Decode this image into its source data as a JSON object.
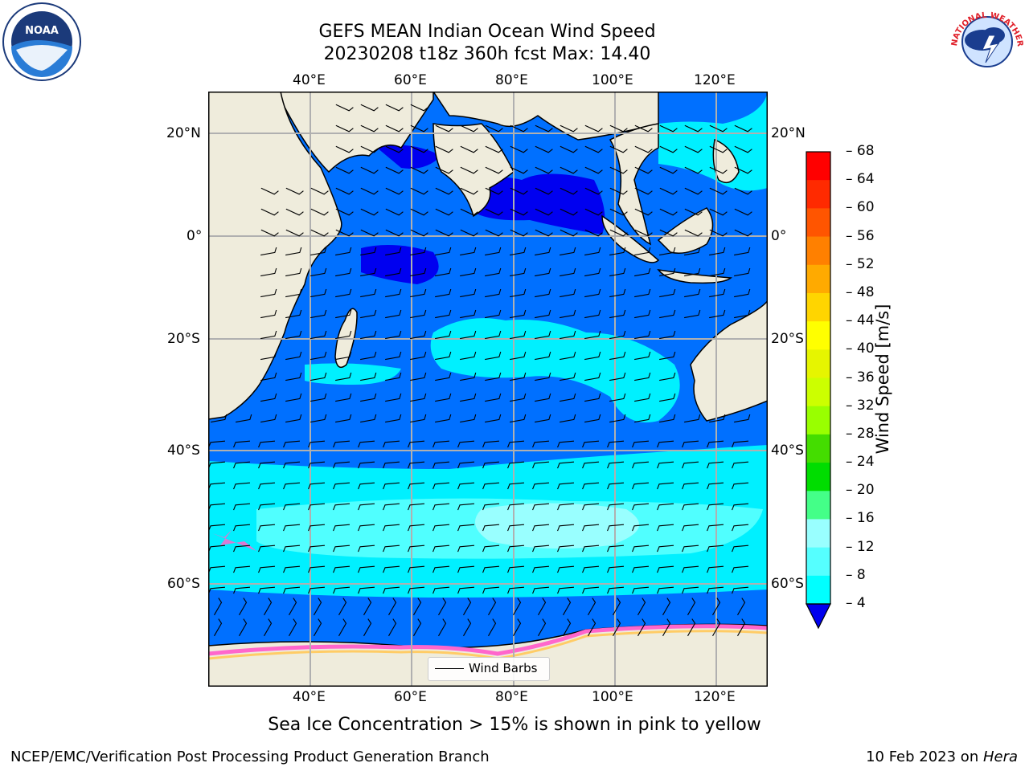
{
  "title": {
    "line1": "GEFS MEAN Indian Ocean Wind Speed",
    "line2": "20230208 t18z 360h fcst   Max: 14.40"
  },
  "logos": {
    "left": {
      "text": "NOAA",
      "icon": "noaa-logo"
    },
    "right": {
      "text": "NATIONAL WEATHER SERVICE",
      "icon": "nws-logo"
    }
  },
  "map": {
    "lon_labels_top": [
      "40°E",
      "60°E",
      "80°E",
      "100°E",
      "120°E"
    ],
    "lon_labels_bottom": [
      "40°E",
      "60°E",
      "80°E",
      "100°E",
      "120°E"
    ],
    "lat_labels_left": [
      "20°N",
      "0°",
      "20°S",
      "40°S",
      "60°S"
    ],
    "lat_labels_right": [
      "20°N",
      "0°",
      "20°S",
      "40°S",
      "60°S"
    ],
    "legend": {
      "label": "Wind Barbs"
    },
    "colors": {
      "land": "#efecdc",
      "ocean_low": "#0000f0",
      "ocean_mid": "#0070ff",
      "ocean_cyan": "#00f0ff",
      "ocean_lightcyan": "#50ffff",
      "sea_ice": "#ff66cc"
    }
  },
  "colorbar": {
    "label": "Wind Speed [m/s]",
    "ticks": [
      "68",
      "64",
      "60",
      "56",
      "52",
      "48",
      "44",
      "40",
      "36",
      "32",
      "28",
      "24",
      "20",
      "16",
      "12",
      "8",
      "4"
    ],
    "colors": [
      "#ff0000",
      "#ff2a00",
      "#ff5500",
      "#ff8000",
      "#ffaa00",
      "#ffd500",
      "#ffff00",
      "#e6f500",
      "#ccff00",
      "#99ff00",
      "#44dd00",
      "#00dd00",
      "#44ff88",
      "#99ffff",
      "#55ffff",
      "#00ffff",
      "#0077ff"
    ],
    "arrow_color": "#0000ee"
  },
  "caption": "Sea Ice Concentration > 15% is shown in pink to yellow",
  "footer": {
    "left": "NCEP/EMC/Verification Post Processing Product Generation Branch",
    "right_prefix": "10 Feb 2023 on ",
    "right_italic": "Hera"
  }
}
